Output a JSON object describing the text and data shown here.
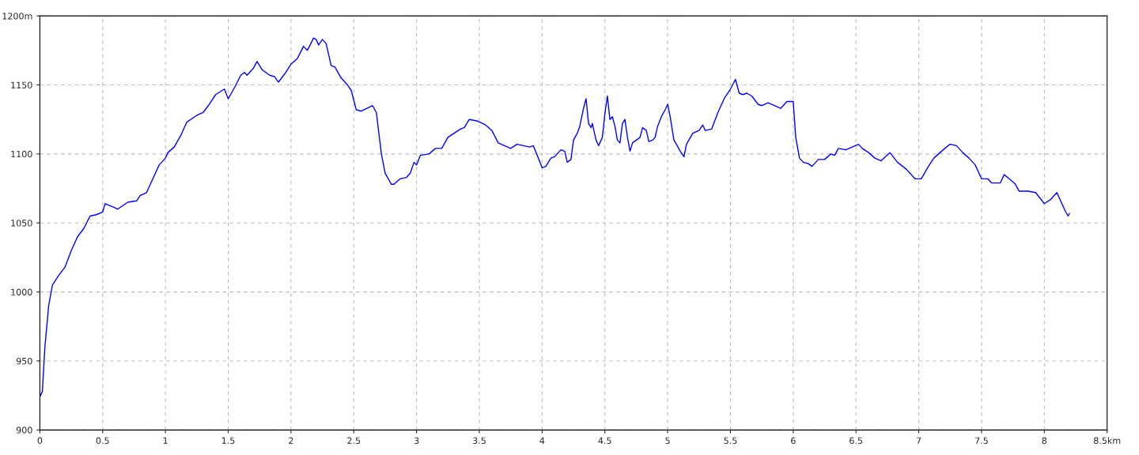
{
  "chart_data": {
    "type": "line",
    "x": [
      0,
      0.02,
      0.04,
      0.07,
      0.1,
      0.15,
      0.2,
      0.25,
      0.3,
      0.35,
      0.4,
      0.45,
      0.5,
      0.52,
      0.6,
      0.62,
      0.7,
      0.77,
      0.8,
      0.85,
      0.9,
      0.95,
      1.0,
      1.02,
      1.07,
      1.12,
      1.17,
      1.25,
      1.3,
      1.35,
      1.4,
      1.47,
      1.5,
      1.55,
      1.6,
      1.63,
      1.65,
      1.7,
      1.73,
      1.77,
      1.83,
      1.87,
      1.9,
      1.95,
      2.0,
      2.05,
      2.1,
      2.13,
      2.18,
      2.2,
      2.22,
      2.25,
      2.28,
      2.32,
      2.35,
      2.4,
      2.45,
      2.48,
      2.52,
      2.56,
      2.65,
      2.68,
      2.72,
      2.75,
      2.8,
      2.82,
      2.87,
      2.92,
      2.95,
      2.98,
      3.0,
      3.03,
      3.1,
      3.15,
      3.2,
      3.25,
      3.3,
      3.35,
      3.38,
      3.42,
      3.48,
      3.55,
      3.6,
      3.65,
      3.7,
      3.75,
      3.8,
      3.85,
      3.9,
      3.93,
      3.97,
      4.0,
      4.03,
      4.07,
      4.1,
      4.15,
      4.18,
      4.2,
      4.23,
      4.25,
      4.28,
      4.3,
      4.33,
      4.35,
      4.37,
      4.39,
      4.4,
      4.43,
      4.45,
      4.48,
      4.5,
      4.52,
      4.54,
      4.56,
      4.58,
      4.6,
      4.62,
      4.64,
      4.66,
      4.68,
      4.7,
      4.72,
      4.75,
      4.78,
      4.8,
      4.83,
      4.85,
      4.88,
      4.9,
      4.92,
      4.95,
      4.98,
      5.0,
      5.02,
      5.05,
      5.07,
      5.1,
      5.13,
      5.15,
      5.2,
      5.25,
      5.28,
      5.3,
      5.35,
      5.4,
      5.45,
      5.5,
      5.54,
      5.57,
      5.6,
      5.63,
      5.67,
      5.72,
      5.75,
      5.8,
      5.85,
      5.9,
      5.95,
      6.0,
      6.02,
      6.05,
      6.08,
      6.12,
      6.15,
      6.2,
      6.25,
      6.3,
      6.33,
      6.36,
      6.42,
      6.47,
      6.52,
      6.55,
      6.6,
      6.65,
      6.7,
      6.77,
      6.83,
      6.9,
      6.97,
      7.02,
      7.07,
      7.12,
      7.17,
      7.22,
      7.25,
      7.3,
      7.35,
      7.4,
      7.45,
      7.5,
      7.55,
      7.58,
      7.65,
      7.68,
      7.72,
      7.77,
      7.8,
      7.87,
      7.93,
      8.0,
      8.05,
      8.1,
      8.13,
      8.17,
      8.19,
      8.2
    ],
    "series": [
      {
        "color": "#0000ff",
        "values": [
          924,
          928,
          960,
          990,
          1005,
          1012,
          1018,
          1030,
          1040,
          1046,
          1055,
          1056,
          1058,
          1064,
          1061,
          1060,
          1065,
          1066,
          1070,
          1072,
          1082,
          1092,
          1097,
          1101,
          1105,
          1113,
          1123,
          1128,
          1130,
          1136,
          1143,
          1147,
          1140,
          1148,
          1157,
          1159,
          1157,
          1162,
          1167,
          1161,
          1157,
          1156,
          1152,
          1158,
          1165,
          1169,
          1178,
          1175,
          1184,
          1183,
          1179,
          1183,
          1180,
          1164,
          1163,
          1155,
          1150,
          1146,
          1132,
          1131,
          1135,
          1130,
          1100,
          1086,
          1078,
          1078,
          1082,
          1083,
          1086,
          1094,
          1092,
          1099,
          1100,
          1104,
          1104,
          1112,
          1115,
          1118,
          1119,
          1125,
          1124,
          1121,
          1117,
          1108,
          1106,
          1104,
          1107,
          1106,
          1105,
          1106,
          1097,
          1090,
          1091,
          1097,
          1098,
          1103,
          1102,
          1094,
          1096,
          1110,
          1115,
          1120,
          1133,
          1140,
          1122,
          1119,
          1122,
          1110,
          1106,
          1112,
          1129,
          1142,
          1125,
          1127,
          1120,
          1110,
          1108,
          1122,
          1125,
          1112,
          1102,
          1108,
          1110,
          1112,
          1119,
          1117,
          1109,
          1110,
          1112,
          1120,
          1127,
          1132,
          1136,
          1127,
          1110,
          1107,
          1102,
          1098,
          1107,
          1115,
          1117,
          1121,
          1117,
          1118,
          1130,
          1140,
          1147,
          1154,
          1144,
          1143,
          1144,
          1142,
          1136,
          1135,
          1137,
          1135,
          1133,
          1138,
          1138,
          1112,
          1097,
          1094,
          1093,
          1091,
          1096,
          1096,
          1100,
          1099,
          1104,
          1103,
          1105,
          1107,
          1104,
          1101,
          1097,
          1095,
          1101,
          1094,
          1089,
          1082,
          1082,
          1090,
          1097,
          1101,
          1105,
          1107,
          1106,
          1101,
          1097,
          1092,
          1082,
          1082,
          1079,
          1079,
          1085,
          1082,
          1078,
          1073,
          1073,
          1072,
          1064,
          1067,
          1072,
          1066,
          1058,
          1055,
          1057
        ]
      }
    ],
    "xlim": [
      0,
      8.5
    ],
    "xticks": [
      0,
      0.5,
      1,
      1.5,
      2,
      2.5,
      3,
      3.5,
      4,
      4.5,
      5,
      5.5,
      6,
      6.5,
      7,
      7.5,
      8,
      {
        "value": 8.5,
        "label": "8.5km"
      }
    ],
    "ylim": [
      900,
      1200
    ],
    "yticks": [
      900,
      950,
      1000,
      1050,
      1100,
      1150,
      {
        "value": 1200,
        "label": "1200m"
      }
    ],
    "grid": true,
    "line_style": "solid",
    "marker": "none",
    "legend": false
  }
}
